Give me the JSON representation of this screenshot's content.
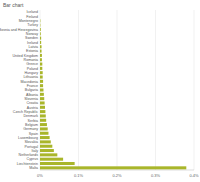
{
  "chart_data": {
    "type": "bar",
    "title": "Bar chart",
    "orientation": "horizontal",
    "categories": [
      "Iceland",
      "Finland",
      "Montenegro",
      "Turkey",
      "Bosnia and Herzegovina",
      "Norway",
      "Sweden",
      "Ireland",
      "Latvia",
      "Estonia",
      "United Kingdom",
      "Romania",
      "Greece",
      "Poland",
      "Hungary",
      "Lithuania",
      "Macedonia",
      "France",
      "Bulgaria",
      "Albania",
      "Slovenia",
      "Croatia",
      "Austria",
      "Czech Republic",
      "Denmark",
      "Serbia",
      "Belgium",
      "Germany",
      "Spain",
      "Luxembourg",
      "Slovakia",
      "Portugal",
      "Italy",
      "Netherlands",
      "Cyprus",
      "Liechtenstein",
      "Malta"
    ],
    "values": [
      0,
      0,
      0.001,
      0.001,
      0.002,
      0.002,
      0.003,
      0.003,
      0.004,
      0.004,
      0.005,
      0.005,
      0.006,
      0.006,
      0.007,
      0.007,
      0.008,
      0.008,
      0.009,
      0.01,
      0.011,
      0.012,
      0.013,
      0.014,
      0.015,
      0.016,
      0.018,
      0.02,
      0.022,
      0.025,
      0.028,
      0.032,
      0.036,
      0.045,
      0.06,
      0.09,
      0.38
    ],
    "color": "#a9b62a",
    "xlim": [
      0,
      0.4
    ],
    "xticks": [
      {
        "value": 0,
        "label": "0%"
      },
      {
        "value": 0.1,
        "label": "0.1%"
      },
      {
        "value": 0.2,
        "label": "0.2%"
      },
      {
        "value": 0.3,
        "label": "0.3%"
      },
      {
        "value": 0.4,
        "label": "0.4%"
      }
    ],
    "grid": true
  }
}
